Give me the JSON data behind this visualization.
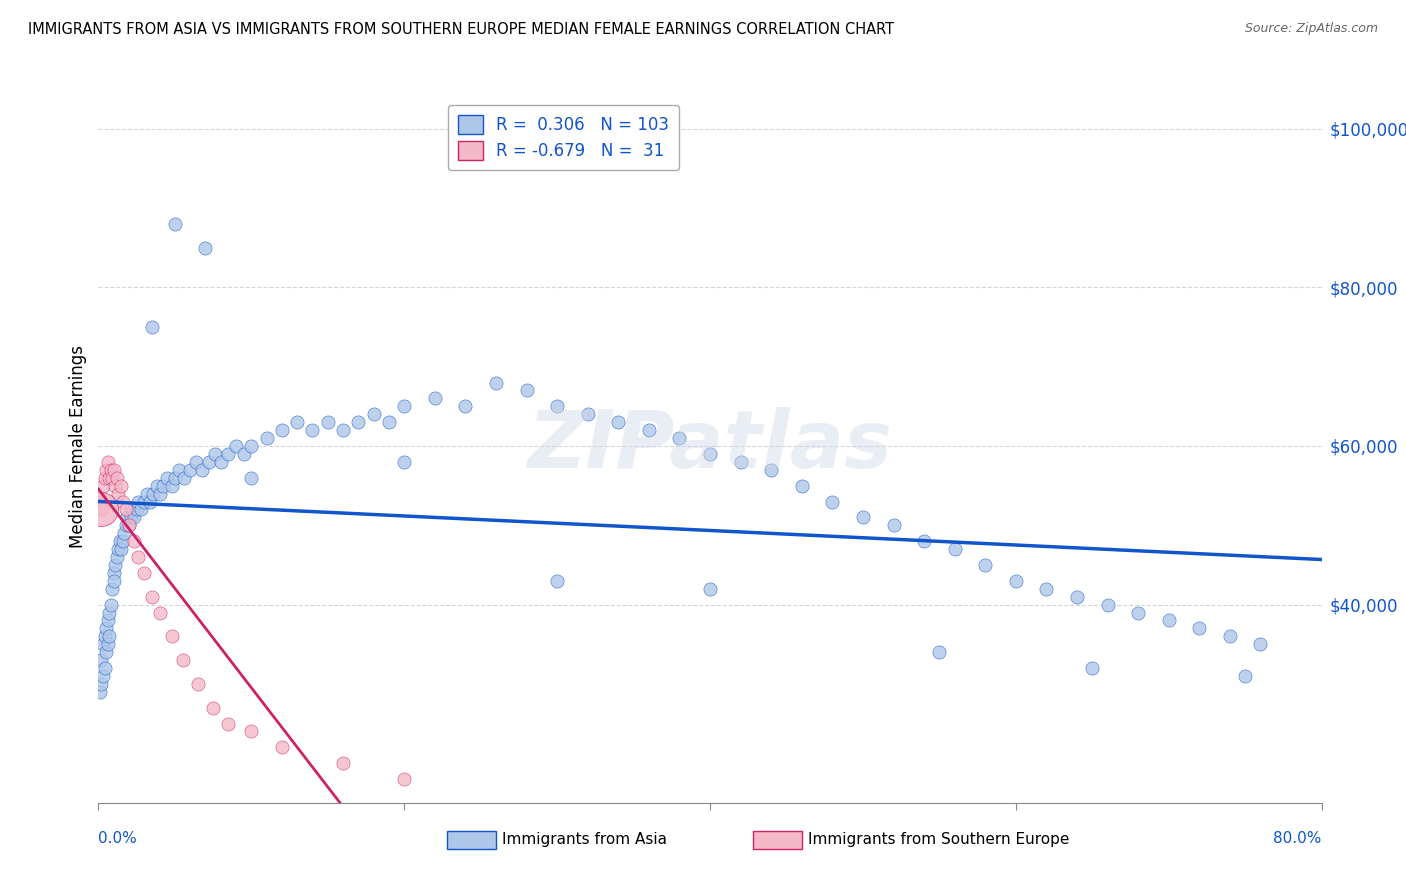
{
  "title": "IMMIGRANTS FROM ASIA VS IMMIGRANTS FROM SOUTHERN EUROPE MEDIAN FEMALE EARNINGS CORRELATION CHART",
  "source": "Source: ZipAtlas.com",
  "ylabel": "Median Female Earnings",
  "y_tick_labels": [
    "$40,000",
    "$60,000",
    "$80,000",
    "$100,000"
  ],
  "y_tick_values": [
    40000,
    60000,
    80000,
    100000
  ],
  "bottom_labels": [
    "Immigrants from Asia",
    "Immigrants from Southern Europe"
  ],
  "legend_r_asia": "0.306",
  "legend_n_asia": "103",
  "legend_r_europe": "-0.679",
  "legend_n_europe": "31",
  "asia_color": "#aec6e8",
  "europe_color": "#f4b8c8",
  "asia_line_color": "#1155cc",
  "europe_line_color": "#cc2266",
  "watermark": "ZIPatlas",
  "background_color": "#ffffff",
  "grid_color": "#cccccc",
  "asia_x": [
    0.1,
    0.2,
    0.2,
    0.3,
    0.3,
    0.4,
    0.4,
    0.5,
    0.5,
    0.6,
    0.6,
    0.7,
    0.7,
    0.8,
    0.9,
    1.0,
    1.0,
    1.1,
    1.2,
    1.3,
    1.4,
    1.5,
    1.6,
    1.7,
    1.8,
    1.9,
    2.0,
    2.1,
    2.2,
    2.3,
    2.5,
    2.6,
    2.8,
    3.0,
    3.2,
    3.4,
    3.6,
    3.8,
    4.0,
    4.2,
    4.5,
    4.8,
    5.0,
    5.3,
    5.6,
    6.0,
    6.4,
    6.8,
    7.2,
    7.6,
    8.0,
    8.5,
    9.0,
    9.5,
    10.0,
    11.0,
    12.0,
    13.0,
    14.0,
    15.0,
    16.0,
    17.0,
    18.0,
    19.0,
    20.0,
    22.0,
    24.0,
    26.0,
    28.0,
    30.0,
    32.0,
    34.0,
    36.0,
    38.0,
    40.0,
    42.0,
    44.0,
    46.0,
    48.0,
    50.0,
    52.0,
    54.0,
    56.0,
    58.0,
    60.0,
    62.0,
    64.0,
    66.0,
    68.0,
    70.0,
    72.0,
    74.0,
    76.0,
    10.0,
    20.0,
    30.0,
    40.0,
    55.0,
    65.0,
    75.0,
    5.0,
    7.0,
    3.5
  ],
  "asia_y": [
    29000,
    30000,
    33000,
    31000,
    35000,
    32000,
    36000,
    34000,
    37000,
    35000,
    38000,
    36000,
    39000,
    40000,
    42000,
    44000,
    43000,
    45000,
    46000,
    47000,
    48000,
    47000,
    48000,
    49000,
    50000,
    51000,
    50000,
    51000,
    52000,
    51000,
    52000,
    53000,
    52000,
    53000,
    54000,
    53000,
    54000,
    55000,
    54000,
    55000,
    56000,
    55000,
    56000,
    57000,
    56000,
    57000,
    58000,
    57000,
    58000,
    59000,
    58000,
    59000,
    60000,
    59000,
    60000,
    61000,
    62000,
    63000,
    62000,
    63000,
    62000,
    63000,
    64000,
    63000,
    65000,
    66000,
    65000,
    68000,
    67000,
    65000,
    64000,
    63000,
    62000,
    61000,
    59000,
    58000,
    57000,
    55000,
    53000,
    51000,
    50000,
    48000,
    47000,
    45000,
    43000,
    42000,
    41000,
    40000,
    39000,
    38000,
    37000,
    36000,
    35000,
    56000,
    58000,
    43000,
    42000,
    34000,
    32000,
    31000,
    88000,
    85000,
    75000
  ],
  "europe_x": [
    0.2,
    0.3,
    0.4,
    0.5,
    0.6,
    0.7,
    0.8,
    0.9,
    1.0,
    1.1,
    1.2,
    1.3,
    1.5,
    1.6,
    1.8,
    2.0,
    2.3,
    2.6,
    3.0,
    3.5,
    4.0,
    4.8,
    5.5,
    6.5,
    7.5,
    8.5,
    10.0,
    12.0,
    16.0,
    20.0,
    0.25
  ],
  "europe_y": [
    53000,
    55000,
    56000,
    57000,
    58000,
    56000,
    57000,
    56000,
    57000,
    55000,
    56000,
    54000,
    55000,
    53000,
    52000,
    50000,
    48000,
    46000,
    44000,
    41000,
    39000,
    36000,
    33000,
    30000,
    27000,
    25000,
    24000,
    22000,
    20000,
    18000,
    52000
  ],
  "europe_big_x": [
    0.2
  ],
  "europe_big_y": [
    52000
  ],
  "xlim": [
    0,
    80
  ],
  "ylim": [
    15000,
    105000
  ],
  "trend_asia_x0": 0,
  "trend_asia_x1": 80,
  "trend_europe_x0": 0,
  "trend_europe_x1": 22,
  "trend_europe_dash_x0": 22,
  "trend_europe_dash_x1": 32,
  "figsize": [
    14.06,
    8.92
  ],
  "dpi": 100
}
